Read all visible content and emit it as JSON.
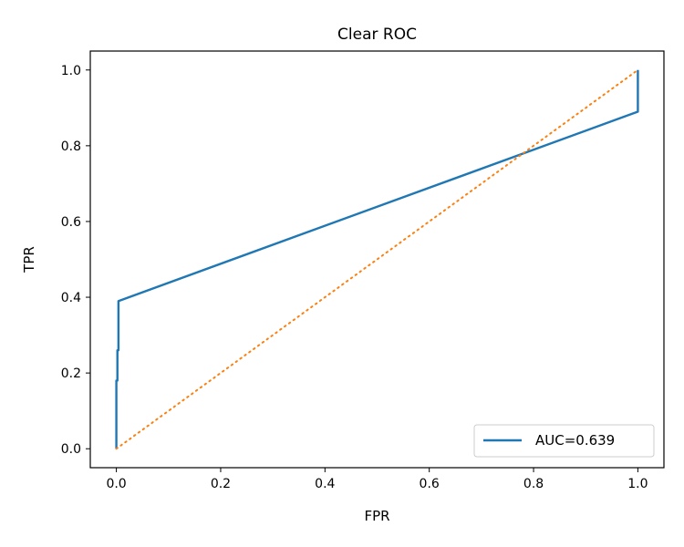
{
  "chart_data": {
    "type": "line",
    "title": "Clear ROC",
    "xlabel": "FPR",
    "ylabel": "TPR",
    "xlim": [
      -0.05,
      1.05
    ],
    "ylim": [
      -0.05,
      1.05
    ],
    "x_ticks": [
      "0.0",
      "0.2",
      "0.4",
      "0.6",
      "0.8",
      "1.0"
    ],
    "y_ticks": [
      "0.0",
      "0.2",
      "0.4",
      "0.6",
      "0.8",
      "1.0"
    ],
    "grid": false,
    "legend": {
      "position": "lower-right",
      "entries": [
        "AUC=0.639"
      ]
    },
    "series": [
      {
        "name": "AUC=0.639",
        "style": "solid",
        "color": "#1f77b4",
        "x": [
          0.0,
          0.0,
          0.002,
          0.002,
          0.004,
          0.004,
          1.0,
          1.0,
          1.0
        ],
        "y": [
          0.0,
          0.18,
          0.18,
          0.26,
          0.26,
          0.39,
          0.89,
          0.96,
          1.0
        ]
      },
      {
        "style": "dotted",
        "color": "#ff7f0e",
        "x": [
          0.0,
          1.0
        ],
        "y": [
          0.0,
          1.0
        ]
      }
    ]
  }
}
